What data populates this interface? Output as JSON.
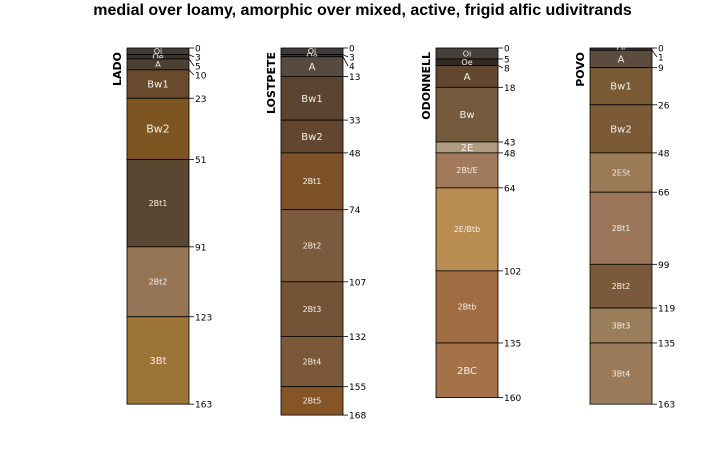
{
  "chart_data": {
    "type": "soil_profile",
    "title": "medial over loamy, amorphic over mixed, active, frigid alfic udivitrands",
    "depth_range": [
      0,
      168
    ],
    "profiles": [
      {
        "name": "LADO",
        "horizons": [
          {
            "name": "Oi",
            "top": 0,
            "bottom": 3,
            "color": "#3f3b38"
          },
          {
            "name": "Oe",
            "top": 3,
            "bottom": 5,
            "color": "#3a342f"
          },
          {
            "name": "A",
            "top": 5,
            "bottom": 10,
            "color": "#4c3f34"
          },
          {
            "name": "Bw1",
            "top": 10,
            "bottom": 23,
            "color": "#6a4a2d"
          },
          {
            "name": "Bw2",
            "top": 23,
            "bottom": 51,
            "color": "#7d5520"
          },
          {
            "name": "2Bt1",
            "top": 51,
            "bottom": 91,
            "color": "#5a4732"
          },
          {
            "name": "2Bt2",
            "top": 91,
            "bottom": 123,
            "color": "#967556"
          },
          {
            "name": "3Bt",
            "top": 123,
            "bottom": 163,
            "color": "#9b7438"
          }
        ]
      },
      {
        "name": "LOSTPETE",
        "horizons": [
          {
            "name": "Oi",
            "top": 0,
            "bottom": 3,
            "color": "#3f3b38"
          },
          {
            "name": "Oe",
            "top": 3,
            "bottom": 4,
            "color": "#3d3530"
          },
          {
            "name": "A",
            "top": 4,
            "bottom": 13,
            "color": "#574a3f"
          },
          {
            "name": "Bw1",
            "top": 13,
            "bottom": 33,
            "color": "#5d4430"
          },
          {
            "name": "Bw2",
            "top": 33,
            "bottom": 48,
            "color": "#634630"
          },
          {
            "name": "2Bt1",
            "top": 48,
            "bottom": 74,
            "color": "#7e5228"
          },
          {
            "name": "2Bt2",
            "top": 74,
            "bottom": 107,
            "color": "#7c5a3d"
          },
          {
            "name": "2Bt3",
            "top": 107,
            "bottom": 132,
            "color": "#755337"
          },
          {
            "name": "2Bt4",
            "top": 132,
            "bottom": 155,
            "color": "#7a5838"
          },
          {
            "name": "2Bt5",
            "top": 155,
            "bottom": 168,
            "color": "#855528"
          }
        ]
      },
      {
        "name": "ODONNELL",
        "horizons": [
          {
            "name": "Oi",
            "top": 0,
            "bottom": 5,
            "color": "#454039"
          },
          {
            "name": "Oe",
            "top": 5,
            "bottom": 8,
            "color": "#2f2a25"
          },
          {
            "name": "A",
            "top": 8,
            "bottom": 18,
            "color": "#62472f"
          },
          {
            "name": "Bw",
            "top": 18,
            "bottom": 43,
            "color": "#735a3c"
          },
          {
            "name": "2E",
            "top": 43,
            "bottom": 48,
            "color": "#b09b7f"
          },
          {
            "name": "2Bt/E",
            "top": 48,
            "bottom": 64,
            "color": "#a07a5b"
          },
          {
            "name": "2E/Btb",
            "top": 64,
            "bottom": 102,
            "color": "#b98c52"
          },
          {
            "name": "2Btb",
            "top": 102,
            "bottom": 135,
            "color": "#a06d42"
          },
          {
            "name": "2BC",
            "top": 135,
            "bottom": 160,
            "color": "#a47249"
          }
        ]
      },
      {
        "name": "POVO",
        "horizons": [
          {
            "name": "Oi",
            "top": 0,
            "bottom": 1,
            "color": "#3f3b38"
          },
          {
            "name": "A",
            "top": 1,
            "bottom": 9,
            "color": "#5b4c3e"
          },
          {
            "name": "Bw1",
            "top": 9,
            "bottom": 26,
            "color": "#7a5a34"
          },
          {
            "name": "Bw2",
            "top": 26,
            "bottom": 48,
            "color": "#7c5937"
          },
          {
            "name": "2ESt",
            "top": 48,
            "bottom": 66,
            "color": "#9a7a57"
          },
          {
            "name": "2Bt1",
            "top": 66,
            "bottom": 99,
            "color": "#9b7559"
          },
          {
            "name": "2Bt2",
            "top": 99,
            "bottom": 119,
            "color": "#7b5a3b"
          },
          {
            "name": "3Bt3",
            "top": 119,
            "bottom": 135,
            "color": "#9a7d5b"
          },
          {
            "name": "3Bt4",
            "top": 135,
            "bottom": 163,
            "color": "#9a7a58"
          }
        ]
      }
    ]
  }
}
